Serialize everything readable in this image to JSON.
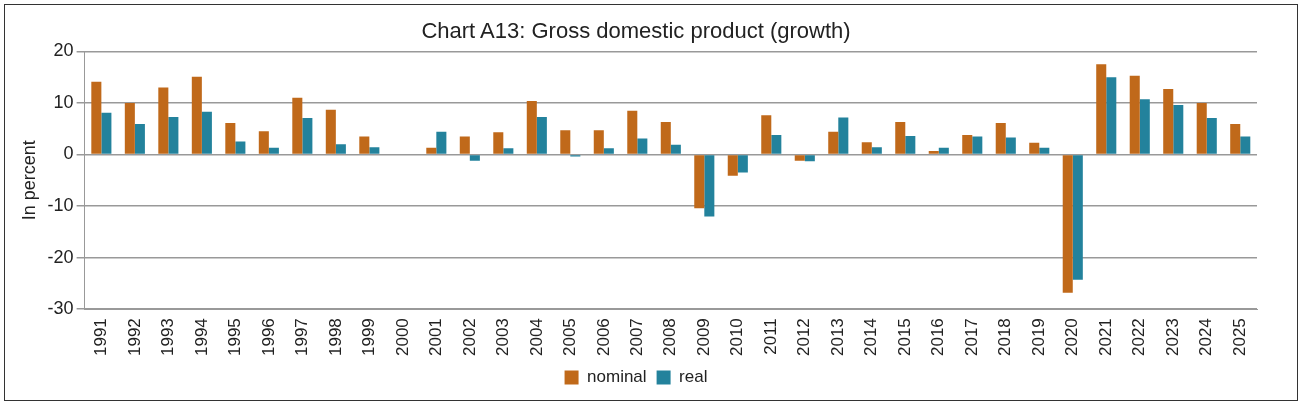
{
  "chart_data": {
    "type": "bar",
    "title": "Chart A13: Gross domestic product (growth)",
    "ylabel": "In percent",
    "categories": [
      "1991",
      "1992",
      "1993",
      "1994",
      "1995",
      "1996",
      "1997",
      "1998",
      "1999",
      "2000",
      "2001",
      "2002",
      "2003",
      "2004",
      "2005",
      "2006",
      "2007",
      "2008",
      "2009",
      "2010",
      "2011",
      "2012",
      "2013",
      "2014",
      "2015",
      "2016",
      "2017",
      "2018",
      "2019",
      "2020",
      "2021",
      "2022",
      "2023",
      "2024",
      "2025"
    ],
    "series": [
      {
        "name": "nominal",
        "color": "#c0691a",
        "values": [
          14.1,
          10.0,
          13.0,
          15.1,
          6.1,
          4.5,
          11.0,
          8.7,
          3.5,
          null,
          1.3,
          3.5,
          4.3,
          10.4,
          4.7,
          4.7,
          8.5,
          6.3,
          -10.4,
          -4.1,
          7.6,
          -1.2,
          4.4,
          2.4,
          6.3,
          0.7,
          3.8,
          6.1,
          2.3,
          -26.8,
          17.5,
          15.3,
          12.7,
          10.0,
          5.9
        ]
      },
      {
        "name": "real",
        "color": "#23829c",
        "values": [
          8.1,
          5.9,
          7.3,
          8.3,
          2.5,
          1.3,
          7.1,
          2.0,
          1.4,
          null,
          4.4,
          -1.2,
          1.2,
          7.3,
          -0.4,
          1.2,
          3.1,
          1.9,
          -12.0,
          -3.5,
          3.8,
          -1.3,
          7.2,
          1.4,
          3.6,
          1.3,
          3.5,
          3.3,
          1.3,
          -24.3,
          15.0,
          10.7,
          9.6,
          7.1,
          3.5
        ]
      }
    ],
    "ylim": [
      -30,
      20
    ],
    "yticks": [
      -30,
      -20,
      -10,
      0,
      10,
      20
    ],
    "grid": "y",
    "legend": "bottom"
  }
}
